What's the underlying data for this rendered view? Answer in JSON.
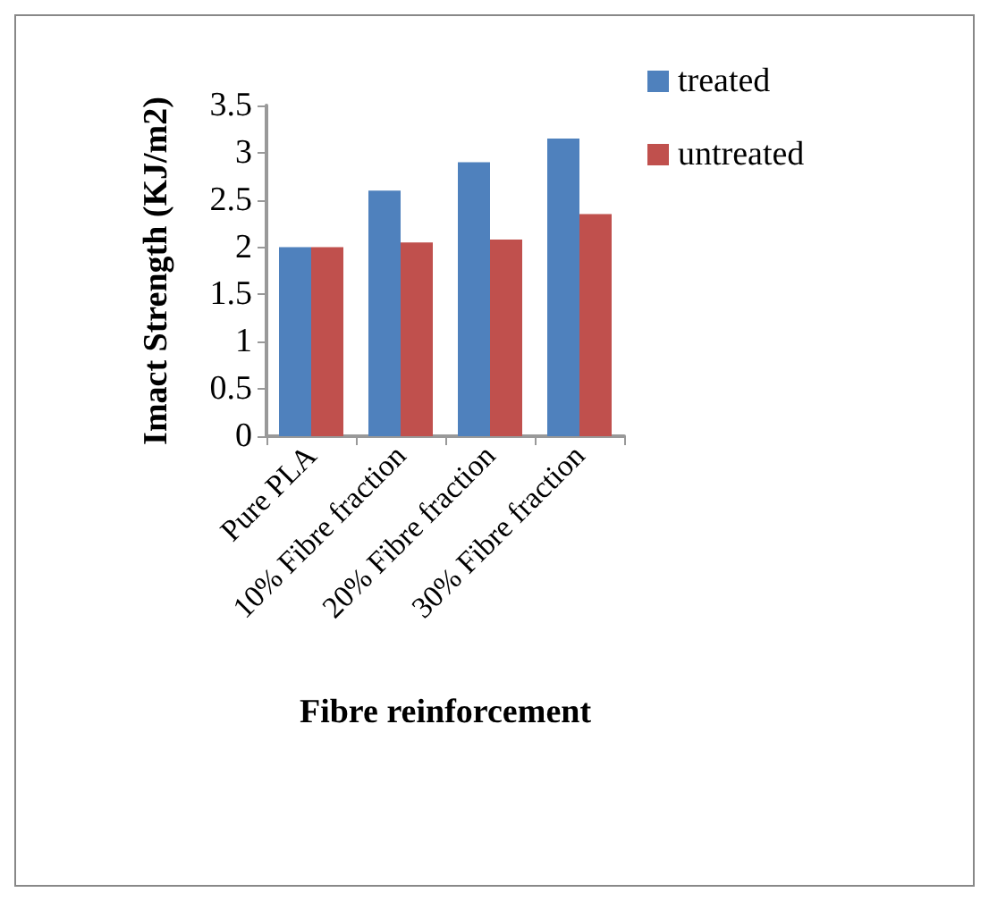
{
  "chart_data": {
    "type": "bar",
    "xlabel": "Fibre reinforcement",
    "ylabel": "Imact Strength (KJ/m2)",
    "categories": [
      "Pure PLA",
      "10% Fibre fraction",
      "20% Fibre fraction",
      "30% Fibre fraction"
    ],
    "series": [
      {
        "name": "treated",
        "color": "#4f81bd",
        "values": [
          2.0,
          2.6,
          2.9,
          3.15
        ]
      },
      {
        "name": "untreated",
        "color": "#c0504d",
        "values": [
          2.0,
          2.05,
          2.08,
          2.35
        ]
      }
    ],
    "ylim": [
      0,
      3.5
    ],
    "yticks": [
      0,
      0.5,
      1,
      1.5,
      2,
      2.5,
      3,
      3.5
    ],
    "grid": false,
    "legend": "top right"
  }
}
